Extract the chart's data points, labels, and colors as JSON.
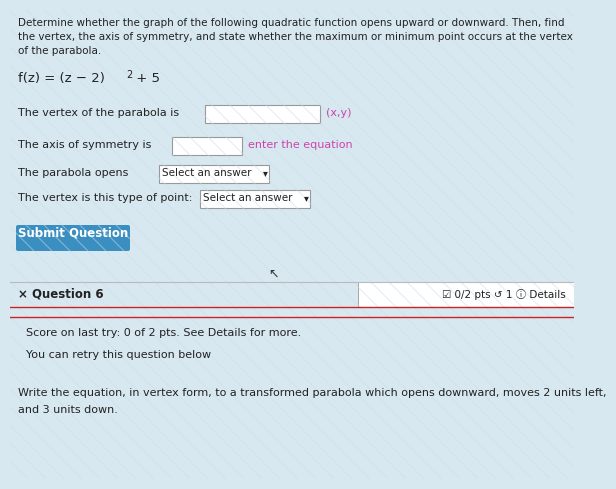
{
  "bg_color": "#d8e8f0",
  "title_line1": "Determine whether the graph of the following quadratic function opens upward or downward. Then, find",
  "title_line2": "the vertex, the axis of symmetry, and state whether the maximum or minimum point occurs at the vertex",
  "title_line3": "of the parabola.",
  "function_text": "f(z) = (z − 2)² + 5",
  "line1_label": "The vertex of the parabola is",
  "line1_hint": "(x,y)",
  "line2_label": "The axis of symmetry is",
  "line2_hint": "enter the equation",
  "line3_label": "The parabola opens",
  "line3_dd": "Select an answer",
  "line4_label": "The vertex is this type of point:",
  "line4_dd": "Select an answer",
  "button_text": "Submit Question",
  "button_color": "#3a8fc0",
  "question_label": "× Question 6",
  "pts_text": "☑ 0/2 pts ↺ 1 ⓘ Details",
  "score_text": "Score on last try: 0 of 2 pts. See Details for more.",
  "retry_text": "You can retry this question below",
  "bottom_line1": "Write the equation, in vertex form, to a transformed parabola which opens downward, moves 2 units left,",
  "bottom_line2": "and 3 units down.",
  "text_color": "#222222",
  "hint_color": "#cc44aa",
  "divider_red": "#cc2222",
  "divider_gray": "#bbbbbb",
  "white": "#ffffff",
  "border_color": "#999999"
}
